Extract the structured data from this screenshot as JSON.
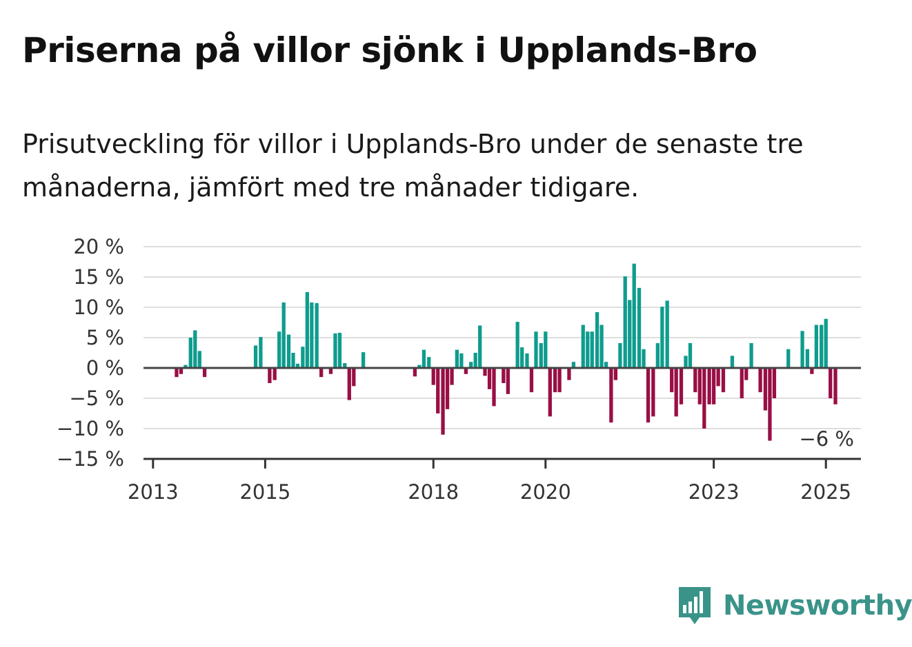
{
  "chart_data": {
    "type": "bar",
    "title": "Priserna på villor sjönk i Upplands-Bro",
    "subtitle": "Prisutveckling för villor i Upplands-Bro under de senaste tre månaderna, jämfört med tre månader tidigare.",
    "xlabel": "",
    "ylabel": "",
    "ylim": [
      -15,
      20
    ],
    "yticks": [
      20,
      15,
      10,
      5,
      0,
      -5,
      -10,
      -15
    ],
    "ytick_labels": [
      "20 %",
      "15 %",
      "10 %",
      "5 %",
      "0 %",
      "−5 %",
      "−10 %",
      "−15 %"
    ],
    "xticks": [
      2013,
      2015,
      2018,
      2020,
      2023,
      2025
    ],
    "xtick_labels": [
      "2013",
      "2015",
      "2018",
      "2020",
      "2023",
      "2025"
    ],
    "xlim": [
      2012.83,
      2025.625
    ],
    "grid": true,
    "positive_color": "#0e9c8e",
    "negative_color": "#990f45",
    "annotation": {
      "text": "−6 %",
      "x": 2025.04,
      "y": -6
    },
    "points": [
      {
        "x": 2013.42,
        "y": -1.5
      },
      {
        "x": 2013.5,
        "y": -1
      },
      {
        "x": 2013.58,
        "y": 0.5
      },
      {
        "x": 2013.67,
        "y": 5
      },
      {
        "x": 2013.75,
        "y": 6.2
      },
      {
        "x": 2013.83,
        "y": 2.8
      },
      {
        "x": 2013.92,
        "y": -1.5
      },
      {
        "x": 2014.83,
        "y": 3.7
      },
      {
        "x": 2014.92,
        "y": 5.1
      },
      {
        "x": 2015.08,
        "y": -2.5
      },
      {
        "x": 2015.17,
        "y": -2
      },
      {
        "x": 2015.25,
        "y": 6
      },
      {
        "x": 2015.33,
        "y": 10.8
      },
      {
        "x": 2015.42,
        "y": 5.5
      },
      {
        "x": 2015.5,
        "y": 2.5
      },
      {
        "x": 2015.58,
        "y": 0.7
      },
      {
        "x": 2015.67,
        "y": 3.5
      },
      {
        "x": 2015.75,
        "y": 12.5
      },
      {
        "x": 2015.83,
        "y": 10.8
      },
      {
        "x": 2015.92,
        "y": 10.7
      },
      {
        "x": 2016.0,
        "y": -1.5
      },
      {
        "x": 2016.17,
        "y": -1
      },
      {
        "x": 2016.25,
        "y": 5.7
      },
      {
        "x": 2016.33,
        "y": 5.8
      },
      {
        "x": 2016.42,
        "y": 0.8
      },
      {
        "x": 2016.5,
        "y": -5.3
      },
      {
        "x": 2016.58,
        "y": -3
      },
      {
        "x": 2016.75,
        "y": 2.6
      },
      {
        "x": 2017.67,
        "y": -1.4
      },
      {
        "x": 2017.75,
        "y": 0.5
      },
      {
        "x": 2017.83,
        "y": 3
      },
      {
        "x": 2017.92,
        "y": 1.8
      },
      {
        "x": 2018.0,
        "y": -2.8
      },
      {
        "x": 2018.08,
        "y": -7.5
      },
      {
        "x": 2018.17,
        "y": -11
      },
      {
        "x": 2018.25,
        "y": -6.8
      },
      {
        "x": 2018.33,
        "y": -2.8
      },
      {
        "x": 2018.42,
        "y": 3
      },
      {
        "x": 2018.5,
        "y": 2.4
      },
      {
        "x": 2018.58,
        "y": -1
      },
      {
        "x": 2018.67,
        "y": 1
      },
      {
        "x": 2018.75,
        "y": 2.5
      },
      {
        "x": 2018.83,
        "y": 7
      },
      {
        "x": 2018.92,
        "y": -1.3
      },
      {
        "x": 2019.0,
        "y": -3.5
      },
      {
        "x": 2019.08,
        "y": -6.3
      },
      {
        "x": 2019.25,
        "y": -2.5
      },
      {
        "x": 2019.33,
        "y": -4.3
      },
      {
        "x": 2019.5,
        "y": 7.6
      },
      {
        "x": 2019.58,
        "y": 3.4
      },
      {
        "x": 2019.67,
        "y": 2.4
      },
      {
        "x": 2019.75,
        "y": -4
      },
      {
        "x": 2019.83,
        "y": 6
      },
      {
        "x": 2019.92,
        "y": 4.1
      },
      {
        "x": 2020.0,
        "y": 6
      },
      {
        "x": 2020.08,
        "y": -8
      },
      {
        "x": 2020.17,
        "y": -4
      },
      {
        "x": 2020.25,
        "y": -4
      },
      {
        "x": 2020.42,
        "y": -2
      },
      {
        "x": 2020.5,
        "y": 1
      },
      {
        "x": 2020.67,
        "y": 7.1
      },
      {
        "x": 2020.75,
        "y": 6
      },
      {
        "x": 2020.83,
        "y": 6
      },
      {
        "x": 2020.92,
        "y": 9.2
      },
      {
        "x": 2021.0,
        "y": 7.1
      },
      {
        "x": 2021.08,
        "y": 1
      },
      {
        "x": 2021.17,
        "y": -9
      },
      {
        "x": 2021.25,
        "y": -2
      },
      {
        "x": 2021.33,
        "y": 4.1
      },
      {
        "x": 2021.42,
        "y": 15.1
      },
      {
        "x": 2021.5,
        "y": 11.2
      },
      {
        "x": 2021.58,
        "y": 17.2
      },
      {
        "x": 2021.67,
        "y": 13.2
      },
      {
        "x": 2021.75,
        "y": 3.1
      },
      {
        "x": 2021.83,
        "y": -9
      },
      {
        "x": 2021.92,
        "y": -8
      },
      {
        "x": 2022.0,
        "y": 4.1
      },
      {
        "x": 2022.08,
        "y": 10.1
      },
      {
        "x": 2022.17,
        "y": 11.1
      },
      {
        "x": 2022.25,
        "y": -4
      },
      {
        "x": 2022.33,
        "y": -8
      },
      {
        "x": 2022.42,
        "y": -6
      },
      {
        "x": 2022.5,
        "y": 2
      },
      {
        "x": 2022.58,
        "y": 4.1
      },
      {
        "x": 2022.67,
        "y": -4
      },
      {
        "x": 2022.75,
        "y": -6
      },
      {
        "x": 2022.83,
        "y": -10
      },
      {
        "x": 2022.92,
        "y": -6
      },
      {
        "x": 2023.0,
        "y": -6
      },
      {
        "x": 2023.08,
        "y": -3
      },
      {
        "x": 2023.17,
        "y": -4
      },
      {
        "x": 2023.33,
        "y": 2
      },
      {
        "x": 2023.5,
        "y": -5
      },
      {
        "x": 2023.58,
        "y": -2
      },
      {
        "x": 2023.67,
        "y": 4.1
      },
      {
        "x": 2023.83,
        "y": -4
      },
      {
        "x": 2023.92,
        "y": -7
      },
      {
        "x": 2024.0,
        "y": -12
      },
      {
        "x": 2024.08,
        "y": -5
      },
      {
        "x": 2024.33,
        "y": 3.1
      },
      {
        "x": 2024.58,
        "y": 6.1
      },
      {
        "x": 2024.67,
        "y": 3.1
      },
      {
        "x": 2024.75,
        "y": -1
      },
      {
        "x": 2024.83,
        "y": 7.1
      },
      {
        "x": 2024.92,
        "y": 7.1
      },
      {
        "x": 2025.0,
        "y": 8.1
      },
      {
        "x": 2025.08,
        "y": -5
      },
      {
        "x": 2025.17,
        "y": -6
      }
    ]
  },
  "brand": {
    "name": "Newsworthy",
    "icon": "bar-chart-speech-bubble-icon"
  }
}
